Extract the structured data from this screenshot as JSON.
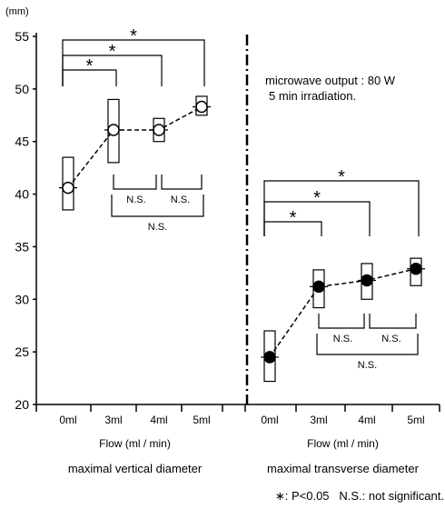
{
  "chart_data": {
    "type": "line",
    "y_unit": "(mm)",
    "y_ticks": [
      "55",
      "50",
      "45",
      "40",
      "35",
      "30",
      "25",
      "20"
    ],
    "ylim": [
      20,
      55
    ],
    "grid": false,
    "note": [
      "microwave output : 80 W",
      "5 min irradiation."
    ],
    "legend_text": "∗: P<0.05   N.S.: not significant.",
    "panels": [
      {
        "categories": [
          "0ml",
          "3ml",
          "4ml",
          "5ml"
        ],
        "xlabel": "Flow (ml / min)",
        "caption": "maximal vertical diameter",
        "marker": "open-circle",
        "means": [
          40.6,
          46.1,
          46.1,
          48.3
        ],
        "box_low": [
          38.5,
          43.0,
          45.0,
          47.5
        ],
        "box_high": [
          43.5,
          49.0,
          47.2,
          49.3
        ],
        "sig_star": "*",
        "ns_label": "N.S."
      },
      {
        "categories": [
          "0ml",
          "3ml",
          "4ml",
          "5ml"
        ],
        "xlabel": "Flow (ml / min)",
        "caption": "maximal transverse diameter",
        "marker": "filled-circle",
        "means": [
          24.5,
          31.2,
          31.8,
          32.9
        ],
        "box_low": [
          22.2,
          29.2,
          30.0,
          31.3
        ],
        "box_high": [
          27.0,
          32.8,
          33.4,
          33.9
        ],
        "sig_star": "*",
        "ns_label": "N.S."
      }
    ]
  }
}
